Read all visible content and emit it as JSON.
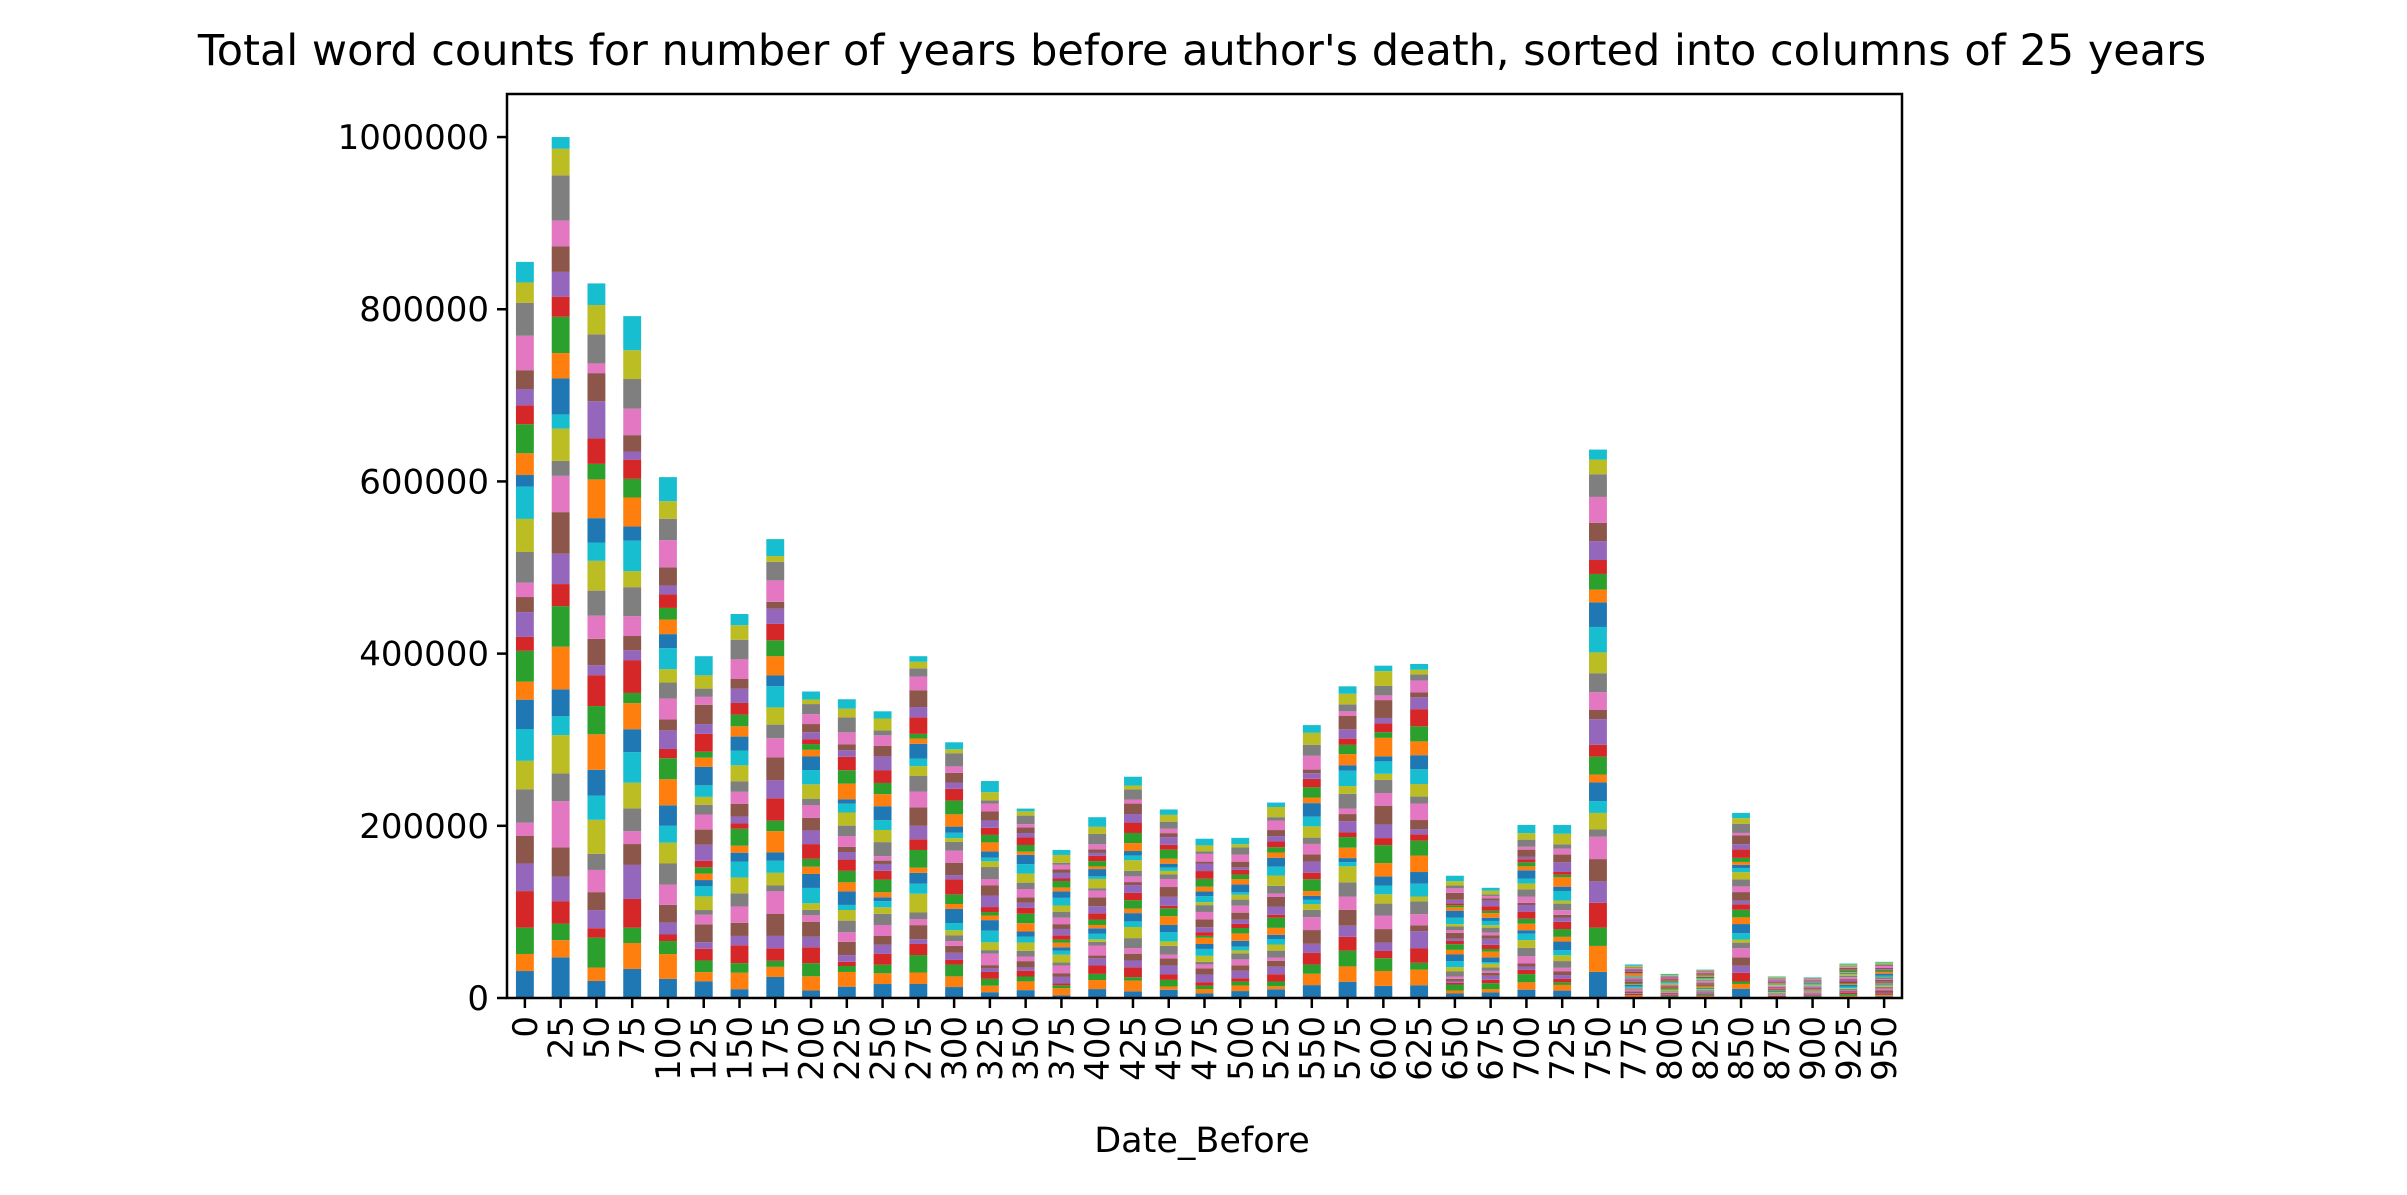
{
  "chart_data": {
    "type": "bar",
    "stacked": true,
    "title": "Total word counts for number of years before author's death, sorted into columns of 25 years",
    "xlabel": "Date_Before",
    "ylabel": "",
    "categories": [
      "0",
      "25",
      "50",
      "75",
      "100",
      "125",
      "150",
      "175",
      "200",
      "225",
      "250",
      "275",
      "300",
      "325",
      "350",
      "375",
      "400",
      "425",
      "450",
      "475",
      "500",
      "525",
      "550",
      "575",
      "600",
      "625",
      "650",
      "675",
      "700",
      "725",
      "750",
      "775",
      "800",
      "825",
      "850",
      "875",
      "900",
      "925",
      "950"
    ],
    "totals": [
      855000,
      1000000,
      830000,
      792000,
      605000,
      397000,
      446000,
      533000,
      356000,
      347000,
      333000,
      397000,
      297000,
      252000,
      220000,
      172000,
      210000,
      257000,
      219000,
      185000,
      186000,
      227000,
      317000,
      362000,
      386000,
      388000,
      142000,
      128000,
      201000,
      201000,
      637000,
      39000,
      28000,
      33000,
      215000,
      25000,
      24000,
      40000,
      42000
    ],
    "ylim": [
      0,
      1050000
    ],
    "yticks": [
      0,
      200000,
      400000,
      600000,
      800000,
      1000000
    ],
    "ytick_labels": [
      "0",
      "200000",
      "400000",
      "600000",
      "800000",
      "1000000"
    ],
    "series_colors": [
      "#1f77b4",
      "#ff7f0e",
      "#2ca02c",
      "#d62728",
      "#9467bd",
      "#8c564b",
      "#e377c2",
      "#7f7f7f",
      "#bcbd22",
      "#17becf"
    ],
    "grid": false,
    "legend": "none"
  }
}
